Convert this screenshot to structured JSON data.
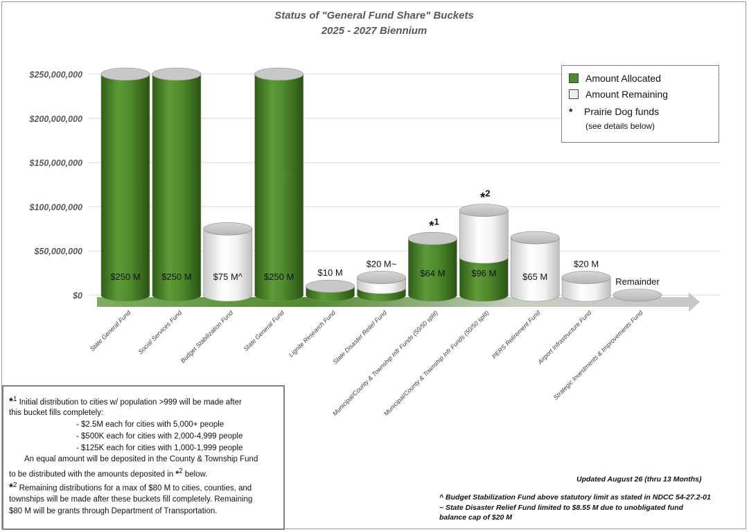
{
  "chart_data": {
    "type": "bar",
    "title": "Status of \"General Fund Share\" Buckets",
    "subtitle": "2025 - 2027 Biennium",
    "yticks": [
      "$0",
      "$50,000,000",
      "$100,000,000",
      "$150,000,000",
      "$200,000,000",
      "$250,000,000"
    ],
    "ylim": [
      0,
      250000000
    ],
    "categories": [
      "State General Fund",
      "Social Services Fund",
      "Budget Stabilization Fund",
      "State General Fund",
      "Lignite Research Fund",
      "State Disaster Relief Fund",
      "Municipal/County & Township Infr Funds (50/50 split)",
      "Municipal/County & Township Infr Funds (50/50 split)",
      "PERS Retirement Fund",
      "Airport Infrastructure Fund",
      "Strategic Investments & Improvements Fund"
    ],
    "series": [
      {
        "name": "Amount Allocated",
        "values": [
          250000000,
          250000000,
          0,
          250000000,
          10000000,
          8550000,
          64000000,
          43000000,
          0,
          0,
          0
        ]
      },
      {
        "name": "Amount Remaining",
        "values": [
          0,
          0,
          75000000,
          0,
          0,
          11450000,
          0,
          53000000,
          65000000,
          20000000,
          0
        ]
      }
    ],
    "bar_labels": [
      "$250 M",
      "$250 M",
      "$75 M^",
      "$250 M",
      "$10 M",
      "$20 M~",
      "$64 M",
      "$96 M",
      "$65 M",
      "$20 M",
      "Remainder"
    ],
    "bar_markers": [
      "",
      "",
      "",
      "",
      "",
      "",
      "*1",
      "*2",
      "",
      "",
      ""
    ],
    "colors": {
      "allocated": "#4f8a2c",
      "remaining": "#eeeeee"
    },
    "grid": true,
    "legend_placement": "top-right"
  },
  "legend": {
    "allocated": "Amount Allocated",
    "remaining": "Amount Remaining",
    "star_symbol": "*",
    "prairie": "Prairie Dog funds",
    "prairie_sub": "(see details below)"
  },
  "notes": {
    "n1_marker": "*",
    "n1_sup": "1",
    "n1_line1": " Initial distribution to cities w/ population >999 will be made after",
    "n1_line2": "this bucket fills completely:",
    "n1_item1": "- $2.5M each for cities with 5,000+ people",
    "n1_item2": "- $500K each for cities with 2,000-4,999 people",
    "n1_item3": "- $125K each for cities with 1,000-1,999 people",
    "n1_line3": "An equal amount will be deposited in the County & Township Fund",
    "n1_line4a": "to be distributed with the amounts deposited in ",
    "n1_line4_marker": "*",
    "n1_line4_sup": "2",
    "n1_line4b": " below.",
    "n2_marker": "*",
    "n2_sup": "2",
    "n2_line1": " Remaining distributions for a max of $80 M to cities, counties, and",
    "n2_line2": "townships will be made after these buckets fill completely. Remaining",
    "n2_line3": "$80 M will be grants through Department of Transportation."
  },
  "footer": {
    "updated": "Updated August 26 (thru 13 Months)",
    "caret_note": "^ Budget Stabilization Fund above statutory limit as stated in NDCC 54-27.2-01",
    "tilde_note_1": "~ State Disaster Relief Fund limited to $8.55 M due to unobligated fund",
    "tilde_note_2": "balance cap of $20 M"
  }
}
